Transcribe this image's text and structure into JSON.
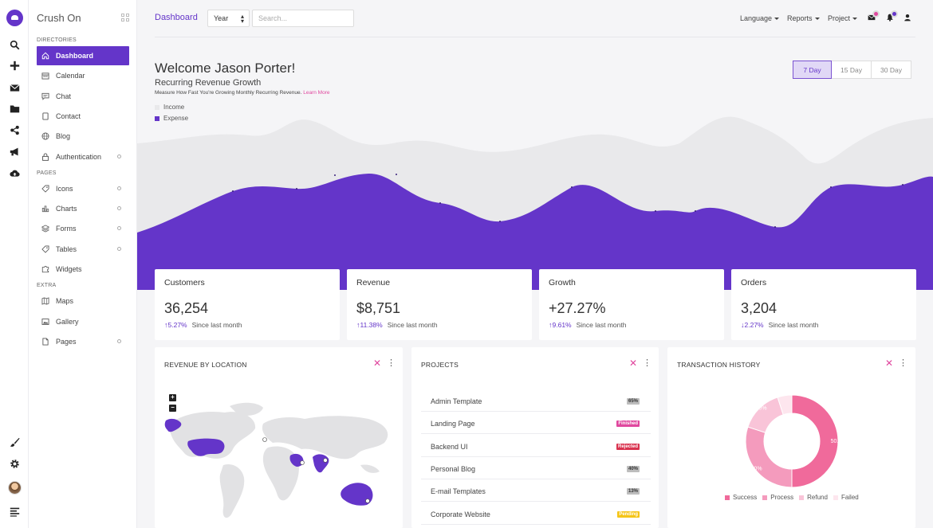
{
  "app": {
    "name": "Crush On"
  },
  "colors": {
    "accent": "#6435c9",
    "pink": "#e0479e",
    "income": "#e9e9eb",
    "expense": "#6435c9"
  },
  "rail": {
    "top_icons": [
      "search-icon",
      "plus-icon",
      "envelope-icon",
      "folder-icon",
      "share-icon",
      "megaphone-icon",
      "cloud-upload-icon"
    ],
    "bottom_icons": [
      "brush-icon",
      "gear-icon",
      "avatar",
      "menu-lines-icon"
    ]
  },
  "menu": {
    "sections": [
      {
        "label": "DIRECTORIES",
        "items": [
          {
            "label": "Dashboard",
            "icon": "home-icon",
            "active": true,
            "sub": false
          },
          {
            "label": "Calendar",
            "icon": "calendar-icon",
            "active": false,
            "sub": false
          },
          {
            "label": "Chat",
            "icon": "chat-icon",
            "active": false,
            "sub": false
          },
          {
            "label": "Contact",
            "icon": "contact-icon",
            "active": false,
            "sub": false
          },
          {
            "label": "Blog",
            "icon": "globe-icon",
            "active": false,
            "sub": false
          },
          {
            "label": "Authentication",
            "icon": "lock-icon",
            "active": false,
            "sub": true
          }
        ]
      },
      {
        "label": "PAGES",
        "items": [
          {
            "label": "Icons",
            "icon": "tag-icon",
            "active": false,
            "sub": true
          },
          {
            "label": "Charts",
            "icon": "bar-chart-icon",
            "active": false,
            "sub": true
          },
          {
            "label": "Forms",
            "icon": "layers-icon",
            "active": false,
            "sub": true
          },
          {
            "label": "Tables",
            "icon": "tag-icon",
            "active": false,
            "sub": true
          },
          {
            "label": "Widgets",
            "icon": "puzzle-icon",
            "active": false,
            "sub": false
          }
        ]
      },
      {
        "label": "EXTRA",
        "items": [
          {
            "label": "Maps",
            "icon": "map-icon",
            "active": false,
            "sub": false
          },
          {
            "label": "Gallery",
            "icon": "image-icon",
            "active": false,
            "sub": false
          },
          {
            "label": "Pages",
            "icon": "file-icon",
            "active": false,
            "sub": true
          }
        ]
      }
    ]
  },
  "topbar": {
    "crumb": "Dashboard",
    "period_select": "Year",
    "search_placeholder": "Search...",
    "links": [
      "Language",
      "Reports",
      "Project"
    ]
  },
  "hero": {
    "title": "Welcome Jason Porter!",
    "subtitle": "Recurring Revenue Growth",
    "desc": "Measure How Fast You're Growing Monthly Recurring Revenue.",
    "desc_link": "Learn More",
    "legend": [
      "Income",
      "Expense"
    ],
    "day_tabs": [
      "7 Day",
      "15 Day",
      "30 Day"
    ],
    "active_tab": 0
  },
  "stats": [
    {
      "label": "Customers",
      "value": "36,254",
      "pct": "5.27%",
      "direction": "up",
      "since": "Since last month"
    },
    {
      "label": "Revenue",
      "value": "$8,751",
      "pct": "11.38%",
      "direction": "up",
      "since": "Since last month"
    },
    {
      "label": "Growth",
      "value": "+27.27%",
      "pct": "9.61%",
      "direction": "up",
      "since": "Since last month"
    },
    {
      "label": "Orders",
      "value": "3,204",
      "pct": "2.27%",
      "direction": "down",
      "since": "Since last month"
    }
  ],
  "revenue_by_location": {
    "title": "REVENUE BY LOCATION",
    "zoom_in": "+",
    "zoom_out": "−",
    "highlighted_regions": [
      "Alaska",
      "United States",
      "Saudi Arabia",
      "India",
      "Australia"
    ]
  },
  "projects": {
    "title": "PROJECTS",
    "rows": [
      {
        "name": "Admin Template",
        "badge": "65%",
        "badge_color": "#9e9e9e"
      },
      {
        "name": "Landing Page",
        "badge": "Finished",
        "badge_color": "#e0479e"
      },
      {
        "name": "Backend UI",
        "badge": "Rejected",
        "badge_color": "#d9334f"
      },
      {
        "name": "Personal Blog",
        "badge": "40%",
        "badge_color": "#9e9e9e"
      },
      {
        "name": "E-mail Templates",
        "badge": "13%",
        "badge_color": "#9e9e9e"
      },
      {
        "name": "Corporate Website",
        "badge": "Pending",
        "badge_color": "#f5c518"
      }
    ]
  },
  "transactions": {
    "title": "TRANSACTION HISTORY",
    "chart_data": {
      "type": "pie",
      "categories": [
        "Success",
        "Process",
        "Refund",
        "Failed"
      ],
      "values": [
        50.0,
        30.0,
        15.0,
        5.0
      ],
      "labels": [
        "50.0%",
        "30.0%",
        "15.0%",
        ""
      ],
      "colors": [
        "#f06a9b",
        "#f49bbd",
        "#f9c4d8",
        "#fde6ee"
      ]
    }
  },
  "icons_glyphs": {
    "close": "✕",
    "more": "⋮",
    "up": "↑",
    "down": "↓"
  }
}
